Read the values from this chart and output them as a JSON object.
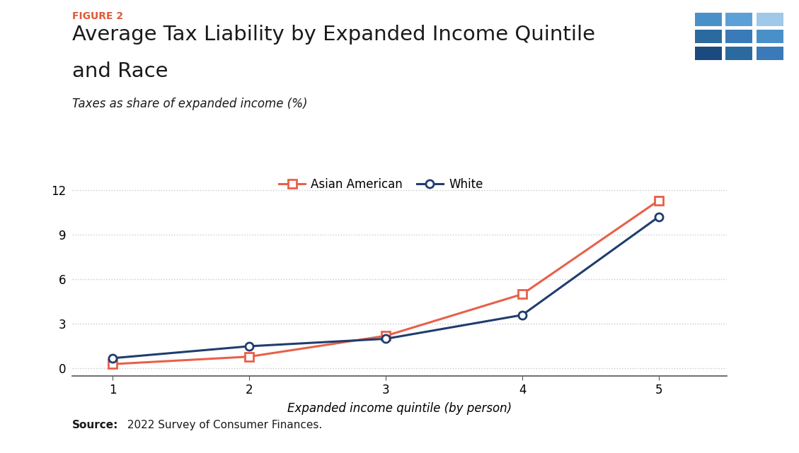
{
  "figure_label": "FIGURE 2",
  "title_line1": "Average Tax Liability by Expanded Income Quintile",
  "title_line2": "and Race",
  "subtitle": "Taxes as share of expanded income (%)",
  "xlabel": "Expanded income quintile (by person)",
  "source_bold": "Source:",
  "source_text": " 2022 Survey of Consumer Finances.",
  "x": [
    1,
    2,
    3,
    4,
    5
  ],
  "asian_american": [
    0.3,
    0.8,
    2.2,
    5.0,
    11.3
  ],
  "white": [
    0.7,
    1.5,
    2.0,
    3.6,
    10.2
  ],
  "asian_color": "#E8604A",
  "white_color": "#1F3D6E",
  "yticks": [
    0,
    3,
    6,
    9,
    12
  ],
  "ylim": [
    -0.5,
    13.5
  ],
  "xlim": [
    0.7,
    5.5
  ],
  "legend_labels": [
    "Asian American",
    "White"
  ],
  "background_color": "#ffffff",
  "figure_label_color": "#E05A3A",
  "grid_color": "#c8c8c8",
  "logo_bg_color": "#1F3D6E",
  "logo_colors": [
    [
      "#4a90c8",
      "#5da0d8",
      "#a0c8e8"
    ],
    [
      "#2a6a9e",
      "#3a7ab8",
      "#4a90c8"
    ],
    [
      "#1a4a7e",
      "#2a6a9e",
      "#3a7ab8"
    ]
  ],
  "logo_text_color": "#ffffff"
}
